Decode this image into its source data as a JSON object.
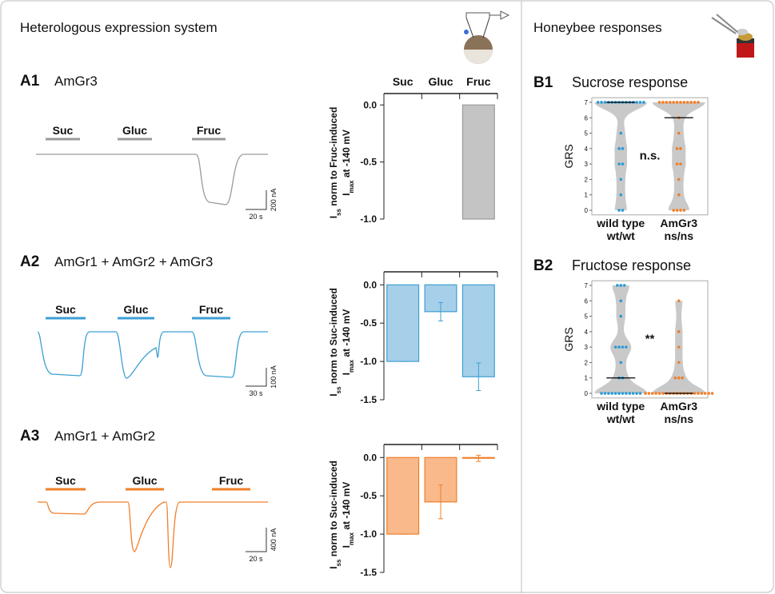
{
  "header": {
    "left": "Heterologous expression system",
    "right": "Honeybee responses"
  },
  "traces": [
    {
      "panel": "A1",
      "title": "AmGr3",
      "stimuli": [
        "Suc",
        "Gluc",
        "Fruc"
      ],
      "scale_y": "200 nA",
      "scale_x": "20 s",
      "color": "#9a9a9a"
    },
    {
      "panel": "A2",
      "title": "AmGr1 + AmGr2 + AmGr3",
      "stimuli": [
        "Suc",
        "Gluc",
        "Fruc"
      ],
      "scale_y": "100 nA",
      "scale_x": "30 s",
      "color": "#3d9fd3"
    },
    {
      "panel": "A3",
      "title": "AmGr1 + AmGr2",
      "stimuli": [
        "Suc",
        "Gluc",
        "Fruc"
      ],
      "scale_y": "400 nA",
      "scale_x": "20 s",
      "color": "#f07f2a"
    }
  ],
  "chart_data": [
    {
      "type": "bar",
      "categories": [
        "Suc",
        "Gluc",
        "Fruc"
      ],
      "values": [
        0,
        0,
        -1
      ],
      "ylabel": [
        [
          "I",
          "ss",
          " norm to Fruc-induced"
        ],
        [
          "I",
          "max",
          " at -140 mV"
        ]
      ],
      "ylim": [
        -1,
        0.1
      ],
      "yticks": [
        {
          "value": 0,
          "label": "0.0"
        },
        -0.5,
        {
          "value": -1,
          "label": "-1.0"
        }
      ],
      "color": "#c4c4c4",
      "edge_color": "#9a9a9a"
    },
    {
      "type": "bar",
      "values": [
        -1,
        -0.35,
        -1.2
      ],
      "errors": [
        0,
        0.12,
        0.18
      ],
      "ylabel": [
        [
          "I",
          "ss",
          " norm to Suc-induced"
        ],
        [
          "I",
          "max",
          " at -140 mV"
        ]
      ],
      "ylim": [
        -1.5,
        0.17
      ],
      "yticks": [
        {
          "value": 0,
          "label": "0.0"
        },
        -0.5,
        {
          "value": -1,
          "label": "-1.0"
        },
        -1.5
      ],
      "color": "#a6d0ea",
      "edge_color": "#3d9fd3"
    },
    {
      "type": "bar",
      "values": [
        -1,
        -0.58,
        -0.01
      ],
      "errors": [
        0,
        0.22,
        0.04
      ],
      "ylabel": [
        [
          "I",
          "ss",
          " norm to Suc-induced"
        ],
        [
          "I",
          "max",
          " at -140 mV"
        ]
      ],
      "ylim": [
        -1.5,
        0.17
      ],
      "yticks": [
        {
          "value": 0,
          "label": "0.0"
        },
        -0.5,
        {
          "value": -1,
          "label": "-1.0"
        },
        -1.5
      ],
      "color": "#f9b98a",
      "edge_color": "#f07f2a"
    },
    {
      "type": "violin",
      "panel": "B1",
      "title": "Sucrose response",
      "ylabel": "GRS",
      "annotation": "n.s.",
      "ylim": [
        -0.3,
        7.3
      ],
      "yticks": [
        0,
        1,
        2,
        3,
        4,
        5,
        6,
        7
      ],
      "series": [
        {
          "name": [
            "wild type",
            "wt/wt"
          ],
          "color": "#2b9ad6",
          "median": 7,
          "values": [
            7,
            7,
            7,
            7,
            7,
            7,
            7,
            7,
            7,
            7,
            7,
            7,
            7,
            7,
            5,
            4,
            4,
            3,
            3,
            2,
            1,
            0,
            0
          ]
        },
        {
          "name": [
            "AmGr3",
            "ns/ns"
          ],
          "color": "#f07f2a",
          "median": 6,
          "values": [
            7,
            7,
            7,
            7,
            7,
            7,
            7,
            7,
            7,
            7,
            7,
            7,
            6,
            5,
            4,
            4,
            3,
            3,
            2,
            1,
            0,
            0,
            0,
            0
          ]
        }
      ]
    },
    {
      "type": "violin",
      "panel": "B2",
      "title": "Fructose response",
      "ylabel": "GRS",
      "annotation": "**",
      "ylim": [
        -0.3,
        7.3
      ],
      "yticks": [
        0,
        1,
        2,
        3,
        4,
        5,
        6,
        7
      ],
      "series": [
        {
          "name": [
            "wild type",
            "wt/wt"
          ],
          "color": "#2b9ad6",
          "median": 1,
          "values": [
            7,
            7,
            7,
            6,
            5,
            3,
            3,
            3,
            3,
            2,
            1,
            1,
            0,
            0,
            0,
            0,
            0,
            0,
            0,
            0,
            0,
            0,
            0,
            0
          ]
        },
        {
          "name": [
            "AmGr3",
            "ns/ns"
          ],
          "color": "#f07f2a",
          "median": 0,
          "values": [
            6,
            4,
            3,
            2,
            1,
            1,
            1,
            0,
            0,
            0,
            0,
            0,
            0,
            0,
            0,
            0,
            0,
            0,
            0,
            0,
            0,
            0,
            0,
            0,
            0,
            0,
            0
          ]
        }
      ]
    }
  ]
}
